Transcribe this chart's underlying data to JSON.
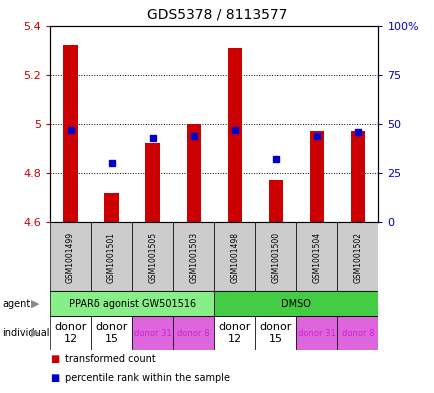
{
  "title": "GDS5378 / 8113577",
  "samples": [
    "GSM1001499",
    "GSM1001501",
    "GSM1001505",
    "GSM1001503",
    "GSM1001498",
    "GSM1001500",
    "GSM1001504",
    "GSM1001502"
  ],
  "red_values": [
    5.32,
    4.72,
    4.92,
    5.0,
    5.31,
    4.77,
    4.97,
    4.97
  ],
  "blue_pct": [
    47,
    30,
    43,
    44,
    47,
    32,
    44,
    46
  ],
  "ylim_left": [
    4.6,
    5.4
  ],
  "ylim_right": [
    0,
    100
  ],
  "yticks_left": [
    4.6,
    4.8,
    5.0,
    5.2,
    5.4
  ],
  "yticks_right": [
    0,
    25,
    50,
    75,
    100
  ],
  "ytick_labels_left": [
    "4.6",
    "4.8",
    "5",
    "5.2",
    "5.4"
  ],
  "ytick_labels_right": [
    "0",
    "25",
    "50",
    "75",
    "100%"
  ],
  "bar_bottom": 4.6,
  "bar_color": "#cc0000",
  "dot_color": "#0000cc",
  "agent_groups": [
    {
      "label": "PPARδ agonist GW501516",
      "start": 0,
      "end": 4,
      "color": "#88ee88"
    },
    {
      "label": "DMSO",
      "start": 4,
      "end": 8,
      "color": "#44cc44"
    }
  ],
  "indiv_spans": [
    {
      "label": "donor\n12",
      "start": 0,
      "end": 1,
      "color": "#ffffff",
      "small": false
    },
    {
      "label": "donor\n15",
      "start": 1,
      "end": 2,
      "color": "#ffffff",
      "small": false
    },
    {
      "label": "donor 31",
      "start": 2,
      "end": 3,
      "color": "#dd66dd",
      "small": true
    },
    {
      "label": "donor 8",
      "start": 3,
      "end": 4,
      "color": "#dd66dd",
      "small": true
    },
    {
      "label": "donor\n12",
      "start": 4,
      "end": 5,
      "color": "#ffffff",
      "small": false
    },
    {
      "label": "donor\n15",
      "start": 5,
      "end": 6,
      "color": "#ffffff",
      "small": false
    },
    {
      "label": "donor 31",
      "start": 6,
      "end": 7,
      "color": "#dd66dd",
      "small": true
    },
    {
      "label": "donor 8",
      "start": 7,
      "end": 8,
      "color": "#dd66dd",
      "small": true
    }
  ],
  "legend_items": [
    {
      "label": "transformed count",
      "color": "#cc0000"
    },
    {
      "label": "percentile rank within the sample",
      "color": "#0000cc"
    }
  ],
  "sample_bg_color": "#cccccc",
  "left_tick_color": "#cc0000",
  "right_tick_color": "#0000cc"
}
